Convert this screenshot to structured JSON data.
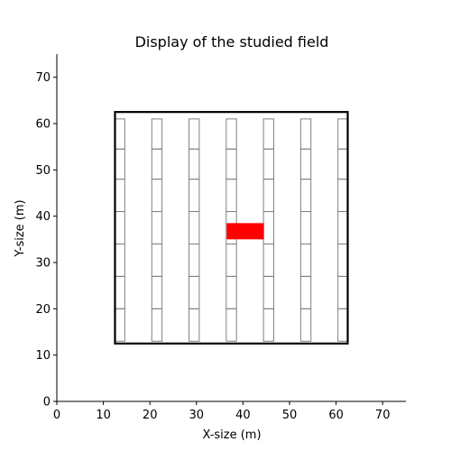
{
  "chart_data": {
    "type": "scatter",
    "title": "Display of the studied field",
    "xlabel": "X-size (m)",
    "ylabel": "Y-size (m)",
    "xlim": [
      0,
      75
    ],
    "ylim": [
      0,
      75
    ],
    "xticks": [
      0,
      10,
      20,
      30,
      40,
      50,
      60,
      70
    ],
    "yticks": [
      0,
      10,
      20,
      30,
      40,
      50,
      60,
      70
    ],
    "field_boundary": {
      "x0": 12.5,
      "y0": 12.5,
      "x1": 62.5,
      "y1": 62.5,
      "color": "#000000"
    },
    "row_centers_x": [
      13.5,
      21.5,
      29.5,
      37.5,
      45.5,
      53.5,
      61.5
    ],
    "plot_width": 2.2,
    "plot_edges_y": [
      13.0,
      20.0,
      27.0,
      34.0,
      41.0,
      48.0,
      54.5,
      61.0
    ],
    "plots_color": "#808080",
    "highlight": {
      "x0": 36.5,
      "y0": 35.0,
      "x1": 44.5,
      "y1": 38.5,
      "color": "#ff0000"
    }
  }
}
